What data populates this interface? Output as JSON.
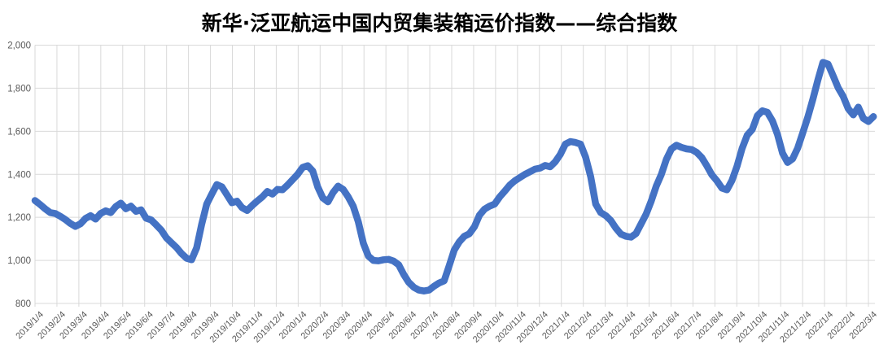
{
  "chart_data": {
    "type": "line",
    "title": "新华·泛亚航运中国内贸集装箱运价指数——综合指数",
    "xlabel": "",
    "ylabel": "",
    "grid": true,
    "legend_position": "none",
    "colors": {
      "series": "#4472C4",
      "grid": "#D9D9D9",
      "axis_labels": "#595959",
      "title": "#000000",
      "background": "#FFFFFF"
    },
    "ylim": [
      800,
      2000
    ],
    "ytick_interval": 200,
    "ytick_labels": [
      "800",
      "1,000",
      "1,200",
      "1,400",
      "1,600",
      "1,800",
      "2,000"
    ],
    "xtick_labels": [
      "2019/1/4",
      "2019/2/4",
      "2019/3/4",
      "2019/4/4",
      "2019/5/4",
      "2019/6/4",
      "2019/7/4",
      "2019/8/4",
      "2019/9/4",
      "2019/10/4",
      "2019/11/4",
      "2019/12/4",
      "2020/1/4",
      "2020/2/4",
      "2020/3/4",
      "2020/4/4",
      "2020/5/4",
      "2020/6/4",
      "2020/7/4",
      "2020/8/4",
      "2020/9/4",
      "2020/10/4",
      "2020/11/4",
      "2020/12/4",
      "2021/1/4",
      "2021/2/4",
      "2021/3/4",
      "2021/4/4",
      "2021/5/4",
      "2021/6/4",
      "2021/7/4",
      "2021/8/4",
      "2021/9/4",
      "2021/10/4",
      "2021/11/4",
      "2021/12/4",
      "2022/1/4",
      "2022/2/4",
      "2022/3/4"
    ],
    "x_cadence": "weekly points spanning first to last tick label",
    "values": [
      1278,
      1260,
      1240,
      1222,
      1218,
      1205,
      1190,
      1172,
      1158,
      1170,
      1195,
      1208,
      1192,
      1218,
      1230,
      1222,
      1250,
      1266,
      1240,
      1252,
      1228,
      1235,
      1196,
      1188,
      1165,
      1140,
      1105,
      1082,
      1060,
      1032,
      1010,
      1003,
      1058,
      1168,
      1262,
      1308,
      1352,
      1342,
      1305,
      1268,
      1275,
      1245,
      1232,
      1255,
      1276,
      1295,
      1320,
      1308,
      1330,
      1328,
      1350,
      1375,
      1400,
      1432,
      1440,
      1415,
      1340,
      1290,
      1272,
      1315,
      1345,
      1330,
      1295,
      1252,
      1180,
      1080,
      1020,
      1000,
      998,
      1003,
      1005,
      997,
      980,
      935,
      898,
      875,
      862,
      858,
      862,
      880,
      895,
      905,
      975,
      1048,
      1086,
      1112,
      1124,
      1156,
      1210,
      1238,
      1252,
      1262,
      1295,
      1322,
      1350,
      1370,
      1385,
      1400,
      1412,
      1424,
      1429,
      1441,
      1435,
      1458,
      1492,
      1540,
      1552,
      1548,
      1540,
      1480,
      1390,
      1262,
      1222,
      1208,
      1185,
      1150,
      1122,
      1112,
      1108,
      1125,
      1170,
      1215,
      1275,
      1345,
      1400,
      1470,
      1518,
      1535,
      1525,
      1518,
      1515,
      1502,
      1478,
      1440,
      1398,
      1370,
      1336,
      1328,
      1372,
      1438,
      1520,
      1582,
      1608,
      1672,
      1695,
      1688,
      1648,
      1585,
      1498,
      1455,
      1472,
      1522,
      1592,
      1665,
      1748,
      1838,
      1920,
      1912,
      1858,
      1802,
      1762,
      1705,
      1676,
      1712,
      1660,
      1645,
      1668
    ]
  }
}
